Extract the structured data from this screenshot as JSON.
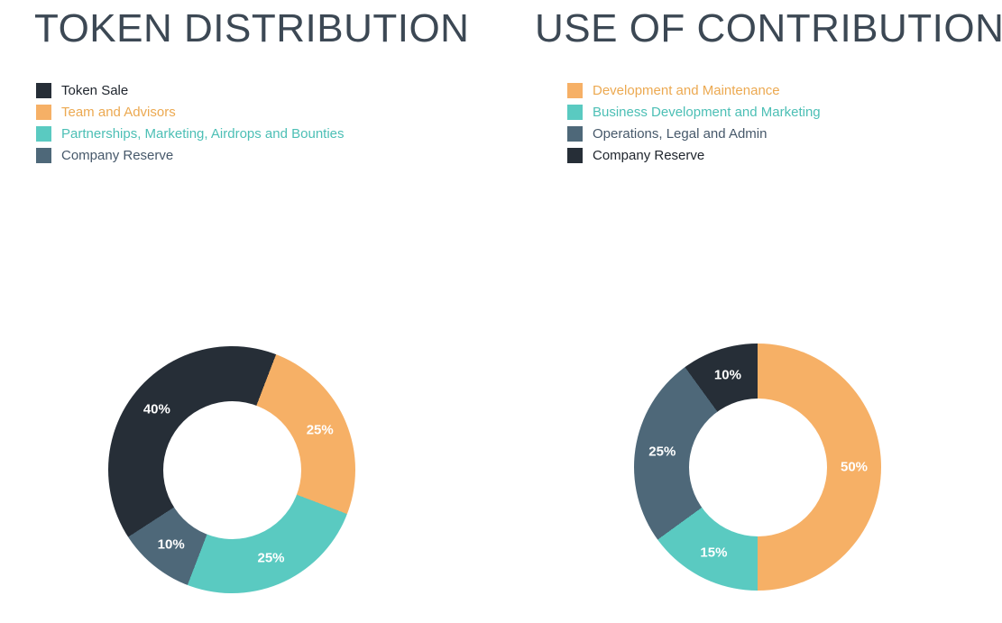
{
  "page": {
    "background": "#ffffff",
    "title_color": "#3C4854",
    "slice_label_color": "#ffffff"
  },
  "chart_data": [
    {
      "type": "pie",
      "subtype": "donut",
      "title": "TOKEN DISTRIBUTION",
      "units": "%",
      "legend_position": "top-left",
      "start_angle_deg": 237,
      "inner_radius_ratio": 0.56,
      "slices": [
        {
          "name": "Token Sale",
          "value": 40,
          "label": "40%",
          "color": "#262E37",
          "text_color": "#20262E"
        },
        {
          "name": "Team and Advisors",
          "value": 25,
          "label": "25%",
          "color": "#F6B066",
          "text_color": "#ECA951"
        },
        {
          "name": "Partnerships, Marketing, Airdrops and Bounties",
          "value": 25,
          "label": "25%",
          "color": "#5ACAC1",
          "text_color": "#4CBFB5"
        },
        {
          "name": "Company Reserve",
          "value": 10,
          "label": "10%",
          "color": "#4E6879",
          "text_color": "#46586A"
        }
      ]
    },
    {
      "type": "pie",
      "subtype": "donut",
      "title": "USE OF CONTRIBUTIONS",
      "units": "%",
      "legend_position": "top-left",
      "start_angle_deg": 0,
      "inner_radius_ratio": 0.56,
      "slices": [
        {
          "name": "Development and Maintenance",
          "value": 50,
          "label": "50%",
          "color": "#F6B066",
          "text_color": "#ECA951"
        },
        {
          "name": "Business Development and Marketing",
          "value": 15,
          "label": "15%",
          "color": "#5ACAC1",
          "text_color": "#4CBFB5"
        },
        {
          "name": "Operations, Legal and Admin",
          "value": 25,
          "label": "25%",
          "color": "#4E6879",
          "text_color": "#46586A"
        },
        {
          "name": "Company Reserve",
          "value": 10,
          "label": "10%",
          "color": "#262E37",
          "text_color": "#20262E"
        }
      ]
    }
  ]
}
